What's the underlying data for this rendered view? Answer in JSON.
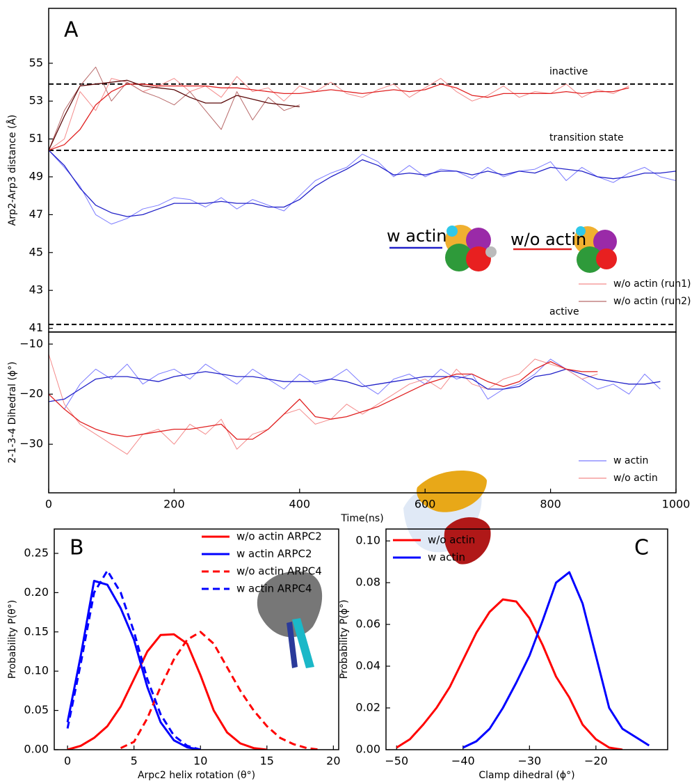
{
  "chart_data": [
    {
      "type": "line",
      "panel": "A",
      "ylabel": "Arp2-Arp3 distance (Å)",
      "xlim": [
        0,
        1000
      ],
      "ylim": [
        40.8,
        57.9
      ],
      "yticks": [
        41,
        43,
        45,
        47,
        49,
        51,
        53,
        55
      ],
      "legend": "lower right",
      "inset_label": "w/o actin",
      "inset_label_color": "#e02020",
      "reference_lines": [
        {
          "y": 53.9,
          "label": "inactive"
        },
        {
          "y": 50.4,
          "label": "transition state"
        },
        {
          "y": 41.2,
          "label": "active"
        }
      ],
      "x": [
        0,
        25,
        50,
        75,
        100,
        125,
        150,
        175,
        200,
        225,
        250,
        275,
        300,
        325,
        350,
        375,
        400,
        425,
        450,
        475,
        500,
        525,
        550,
        575,
        600,
        625,
        650,
        675,
        700,
        725,
        750,
        775,
        800,
        825,
        850,
        875,
        900,
        925,
        950,
        975,
        1000
      ],
      "series": [
        {
          "name": "w actin",
          "legend": false,
          "color": "#7a7aff",
          "smooth_color": "#2020c8",
          "values": [
            50.4,
            49.5,
            48.5,
            47.0,
            46.5,
            46.8,
            47.3,
            47.5,
            47.9,
            47.8,
            47.4,
            47.9,
            47.3,
            47.8,
            47.5,
            47.2,
            48.0,
            48.8,
            49.2,
            49.5,
            50.2,
            49.8,
            49.0,
            49.6,
            49.0,
            49.4,
            49.3,
            48.9,
            49.5,
            49.0,
            49.3,
            49.4,
            49.8,
            48.8,
            49.5,
            49.0,
            48.7,
            49.2,
            49.5,
            49.0,
            48.8
          ],
          "smooth": [
            50.4,
            49.6,
            48.4,
            47.5,
            47.1,
            46.9,
            47.0,
            47.3,
            47.6,
            47.6,
            47.6,
            47.7,
            47.6,
            47.6,
            47.4,
            47.4,
            47.8,
            48.5,
            49.0,
            49.4,
            49.9,
            49.6,
            49.1,
            49.2,
            49.1,
            49.3,
            49.3,
            49.1,
            49.3,
            49.1,
            49.3,
            49.2,
            49.5,
            49.4,
            49.3,
            49.0,
            48.9,
            49.0,
            49.2,
            49.2,
            49.3
          ]
        },
        {
          "name": "w/o actin (run1)",
          "color": "#f48a8a",
          "smooth_color": "#e02020",
          "values": [
            50.4,
            51.0,
            53.5,
            52.5,
            54.2,
            54.0,
            53.5,
            53.8,
            54.2,
            53.5,
            53.8,
            53.2,
            54.3,
            53.5,
            53.7,
            53.0,
            53.8,
            53.5,
            54.0,
            53.4,
            53.2,
            53.6,
            53.9,
            53.2,
            53.7,
            54.2,
            53.5,
            53.0,
            53.3,
            53.8,
            53.2,
            53.5,
            53.4,
            53.9,
            53.2,
            53.6,
            53.4,
            53.8,
            null,
            null,
            null
          ],
          "smooth": [
            50.4,
            50.7,
            51.5,
            52.8,
            53.5,
            53.9,
            53.9,
            53.8,
            53.8,
            53.8,
            53.8,
            53.7,
            53.7,
            53.6,
            53.5,
            53.4,
            53.4,
            53.5,
            53.6,
            53.5,
            53.4,
            53.5,
            53.6,
            53.5,
            53.6,
            53.9,
            53.7,
            53.3,
            53.2,
            53.4,
            53.4,
            53.4,
            53.4,
            53.5,
            53.4,
            53.5,
            53.5,
            53.7,
            null,
            null,
            null
          ]
        },
        {
          "name": "w/o actin (run2)",
          "color": "#b86a6a",
          "smooth_color": "#5a0808",
          "values": [
            50.4,
            52.5,
            53.8,
            54.8,
            53.0,
            54.0,
            53.5,
            53.2,
            52.8,
            53.5,
            52.5,
            51.5,
            53.5,
            52.0,
            53.2,
            52.5,
            52.8,
            null,
            null,
            null,
            null,
            null,
            null,
            null,
            null,
            null,
            null,
            null,
            null,
            null,
            null,
            null,
            null,
            null,
            null,
            null,
            null,
            null,
            null,
            null,
            null
          ],
          "smooth": [
            50.4,
            52.2,
            53.8,
            53.9,
            54.0,
            54.1,
            53.8,
            53.7,
            53.6,
            53.2,
            52.9,
            52.9,
            53.3,
            53.1,
            52.9,
            52.8,
            52.7,
            null,
            null,
            null,
            null,
            null,
            null,
            null,
            null,
            null,
            null,
            null,
            null,
            null,
            null,
            null,
            null,
            null,
            null,
            null,
            null,
            null,
            null,
            null,
            null
          ]
        }
      ]
    },
    {
      "type": "line",
      "xlabel": "Time(ns)",
      "ylabel": "2-1-3-4 Dihedral (ϕ°)",
      "xlim": [
        0,
        1000
      ],
      "ylim": [
        -39.7,
        -7.6
      ],
      "xticks": [
        0,
        200,
        400,
        600,
        800,
        1000
      ],
      "yticks": [
        {
          "value": -10,
          "label": "−10"
        },
        {
          "value": -20,
          "label": "−20"
        },
        {
          "value": -30,
          "label": "−30"
        }
      ],
      "legend": "lower right",
      "x": [
        0,
        25,
        50,
        75,
        100,
        125,
        150,
        175,
        200,
        225,
        250,
        275,
        300,
        325,
        350,
        375,
        400,
        425,
        450,
        475,
        500,
        525,
        550,
        575,
        600,
        625,
        650,
        675,
        700,
        725,
        750,
        775,
        800,
        825,
        850,
        875,
        900,
        925,
        950,
        975,
        1000
      ],
      "series": [
        {
          "name": "w actin",
          "color": "#7a7aff",
          "smooth_color": "#2020c8",
          "values": [
            -20,
            -23,
            -18,
            -15,
            -17,
            -14,
            -18,
            -16,
            -15,
            -17,
            -14,
            -16,
            -18,
            -15,
            -17,
            -19,
            -16,
            -18,
            -17,
            -15,
            -18,
            -20,
            -17,
            -16,
            -18,
            -15,
            -17,
            -16,
            -21,
            -19,
            -18,
            -16,
            -13,
            -15,
            -17,
            -19,
            -18,
            -20,
            -16,
            -19,
            null
          ],
          "smooth": [
            -21.5,
            -21,
            -19,
            -17,
            -16.5,
            -16.5,
            -17,
            -17.5,
            -16.5,
            -16,
            -15.5,
            -16,
            -16.5,
            -16.5,
            -17,
            -17.5,
            -17.5,
            -17.5,
            -17,
            -17.5,
            -18.5,
            -18,
            -17.5,
            -17,
            -16.5,
            -16.5,
            -16.5,
            -17,
            -19,
            -19,
            -18.5,
            -16.5,
            -16,
            -15,
            -16,
            -17,
            -17.5,
            -18,
            -18,
            -17.5,
            null
          ]
        },
        {
          "name": "w/o actin",
          "color": "#f48a8a",
          "smooth_color": "#e02020",
          "values": [
            -12,
            -22,
            -26,
            -28,
            -30,
            -32,
            -28,
            -27,
            -30,
            -26,
            -28,
            -25,
            -31,
            -28,
            -27,
            -24,
            -23,
            -26,
            -25,
            -22,
            -24,
            -22,
            -20,
            -18,
            -17,
            -19,
            -15,
            -18,
            -19,
            -17,
            -16,
            -13,
            -14,
            -15,
            -17,
            -16,
            null,
            null,
            null,
            null,
            null
          ],
          "smooth": [
            -20,
            -23,
            -25.5,
            -27,
            -28,
            -28.5,
            -28,
            -27.5,
            -27,
            -27,
            -26.5,
            -26,
            -29,
            -29,
            -27,
            -24,
            -21,
            -24.5,
            -25,
            -24.5,
            -23.5,
            -22.5,
            -21,
            -19.5,
            -18,
            -17,
            -16,
            -16,
            -17.5,
            -18.5,
            -17.5,
            -15,
            -13.5,
            -15,
            -15.5,
            -15.5,
            null,
            null,
            null,
            null,
            null
          ]
        }
      ]
    },
    {
      "type": "line",
      "panel": "B",
      "xlabel": "Arpc2 helix rotation (θ°)",
      "ylabel": "Probability P(θ°)",
      "xlim": [
        -1,
        20.4
      ],
      "ylim": [
        0,
        0.281
      ],
      "xticks": [
        0,
        5,
        10,
        15,
        20
      ],
      "yticks": [
        {
          "value": 0,
          "label": "0.00"
        },
        {
          "value": 0.05,
          "label": "0.05"
        },
        {
          "value": 0.1,
          "label": "0.10"
        },
        {
          "value": 0.15,
          "label": "0.15"
        },
        {
          "value": 0.2,
          "label": "0.20"
        },
        {
          "value": 0.25,
          "label": "0.25"
        }
      ],
      "legend": "upper right",
      "x": [
        0,
        1,
        2,
        3,
        4,
        5,
        6,
        7,
        8,
        9,
        10,
        11,
        12,
        13,
        14,
        15,
        16,
        17,
        18,
        19
      ],
      "series": [
        {
          "name": "w/o actin ARPC2",
          "color": "#ff0000",
          "dash": false,
          "values": [
            0,
            0.005,
            0.015,
            0.03,
            0.055,
            0.09,
            0.125,
            0.146,
            0.147,
            0.135,
            0.095,
            0.05,
            0.022,
            0.008,
            0.002,
            0,
            null,
            null,
            null,
            null
          ]
        },
        {
          "name": "w actin ARPC2",
          "color": "#0000ff",
          "dash": false,
          "values": [
            0.035,
            0.12,
            0.215,
            0.21,
            0.18,
            0.14,
            0.08,
            0.035,
            0.012,
            0.003,
            0,
            null,
            null,
            null,
            null,
            null,
            null,
            null,
            null,
            null
          ]
        },
        {
          "name": "w/o actin ARPC4",
          "color": "#ff0000",
          "dash": true,
          "values": [
            null,
            null,
            null,
            null,
            0.002,
            0.01,
            0.04,
            0.08,
            0.115,
            0.14,
            0.15,
            0.135,
            0.105,
            0.075,
            0.05,
            0.03,
            0.015,
            0.007,
            0.002,
            0
          ]
        },
        {
          "name": "w actin ARPC4",
          "color": "#0000ff",
          "dash": true,
          "values": [
            0.027,
            0.11,
            0.2,
            0.228,
            0.2,
            0.15,
            0.09,
            0.045,
            0.018,
            0.005,
            0,
            null,
            null,
            null,
            null,
            null,
            null,
            null,
            null,
            null
          ]
        }
      ]
    },
    {
      "type": "line",
      "panel": "C",
      "xlabel": "Clamp dihedral (ϕ°)",
      "ylabel": "Probability P(ϕ°)",
      "xlim": [
        -51.6,
        -9.2
      ],
      "ylim": [
        0,
        0.1057
      ],
      "xticks": [
        {
          "value": -50,
          "label": "−50"
        },
        {
          "value": -40,
          "label": "−40"
        },
        {
          "value": -30,
          "label": "−30"
        },
        {
          "value": -20,
          "label": "−20"
        }
      ],
      "yticks": [
        {
          "value": 0,
          "label": "0.00"
        },
        {
          "value": 0.02,
          "label": "0.02"
        },
        {
          "value": 0.04,
          "label": "0.04"
        },
        {
          "value": 0.06,
          "label": "0.06"
        },
        {
          "value": 0.08,
          "label": "0.08"
        },
        {
          "value": 0.1,
          "label": "0.10"
        }
      ],
      "legend": "upper left",
      "x": [
        -50,
        -48,
        -46,
        -44,
        -42,
        -40,
        -38,
        -36,
        -34,
        -32,
        -30,
        -28,
        -26,
        -24,
        -22,
        -20,
        -18,
        -16,
        -14,
        -12
      ],
      "series": [
        {
          "name": "w/o actin",
          "color": "#ff0000",
          "dash": false,
          "values": [
            0.001,
            0.005,
            0.012,
            0.02,
            0.03,
            0.043,
            0.056,
            0.066,
            0.072,
            0.071,
            0.063,
            0.05,
            0.035,
            0.025,
            0.012,
            0.005,
            0.001,
            0,
            null,
            null
          ]
        },
        {
          "name": "w actin",
          "color": "#0000ff",
          "dash": false,
          "values": [
            null,
            null,
            null,
            null,
            null,
            0.001,
            0.004,
            0.01,
            0.02,
            0.032,
            0.045,
            0.062,
            0.08,
            0.085,
            0.07,
            0.045,
            0.02,
            0.01,
            0.006,
            0.002
          ]
        }
      ]
    }
  ]
}
